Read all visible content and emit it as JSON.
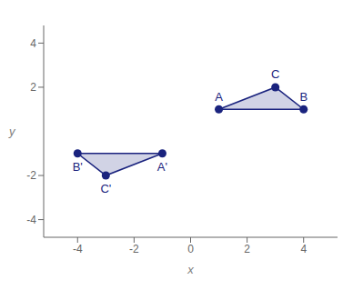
{
  "chart_data": {
    "type": "scatter",
    "xlabel": "x",
    "ylabel": "y",
    "xlim": [
      -5.2,
      5.2
    ],
    "ylim": [
      -4.8,
      4.8
    ],
    "xticks": [
      -4,
      -2,
      0,
      2,
      4
    ],
    "yticks": [
      -4,
      -2,
      2,
      4
    ],
    "series": [
      {
        "type": "polygon",
        "x": [
          1,
          4,
          3
        ],
        "values": [
          1,
          1,
          2
        ],
        "labels": [
          "A",
          "B",
          "C"
        ],
        "color": "#1a237e"
      },
      {
        "type": "polygon",
        "x": [
          -1,
          -4,
          -3
        ],
        "values": [
          -1,
          -1,
          -2
        ],
        "labels": [
          "A'",
          "B'",
          "C'"
        ],
        "color": "#1a237e"
      }
    ]
  }
}
